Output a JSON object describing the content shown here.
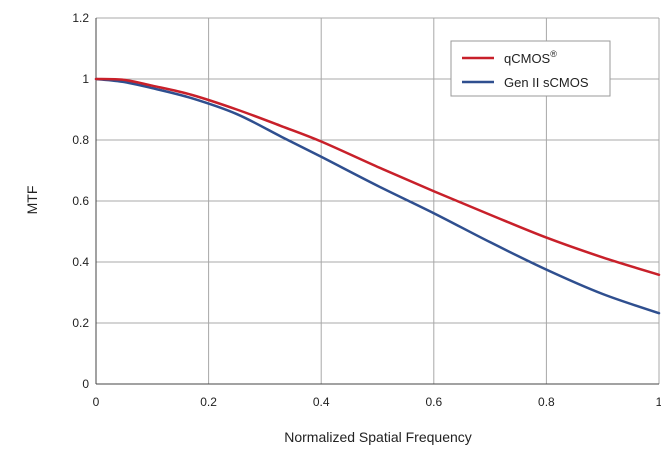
{
  "chart_data": {
    "type": "line",
    "xlabel": "Normalized Spatial Frequency",
    "ylabel": "MTF",
    "xlim": [
      0,
      1
    ],
    "ylim": [
      0,
      1.2
    ],
    "xticks": [
      "0",
      "0.2",
      "0.4",
      "0.6",
      "0.8",
      "1"
    ],
    "yticks": [
      "0",
      "0.2",
      "0.4",
      "0.6",
      "0.8",
      "1",
      "1.2"
    ],
    "grid": true,
    "legend_position": "top-right",
    "series": [
      {
        "name": "qCMOS",
        "name_superscript": "®",
        "color": "#c8202a",
        "x": [
          0,
          0.05,
          0.1,
          0.17,
          0.25,
          0.33,
          0.4,
          0.5,
          0.6,
          0.7,
          0.8,
          0.9,
          1.0
        ],
        "y": [
          1.0,
          0.997,
          0.978,
          0.948,
          0.9,
          0.845,
          0.795,
          0.712,
          0.632,
          0.555,
          0.48,
          0.415,
          0.358
        ]
      },
      {
        "name": "Gen II sCMOS",
        "color": "#2f4f8f",
        "x": [
          0,
          0.05,
          0.1,
          0.17,
          0.25,
          0.33,
          0.4,
          0.5,
          0.6,
          0.7,
          0.8,
          0.9,
          1.0
        ],
        "y": [
          1.0,
          0.99,
          0.97,
          0.937,
          0.885,
          0.81,
          0.745,
          0.65,
          0.56,
          0.465,
          0.375,
          0.295,
          0.232
        ]
      }
    ]
  }
}
